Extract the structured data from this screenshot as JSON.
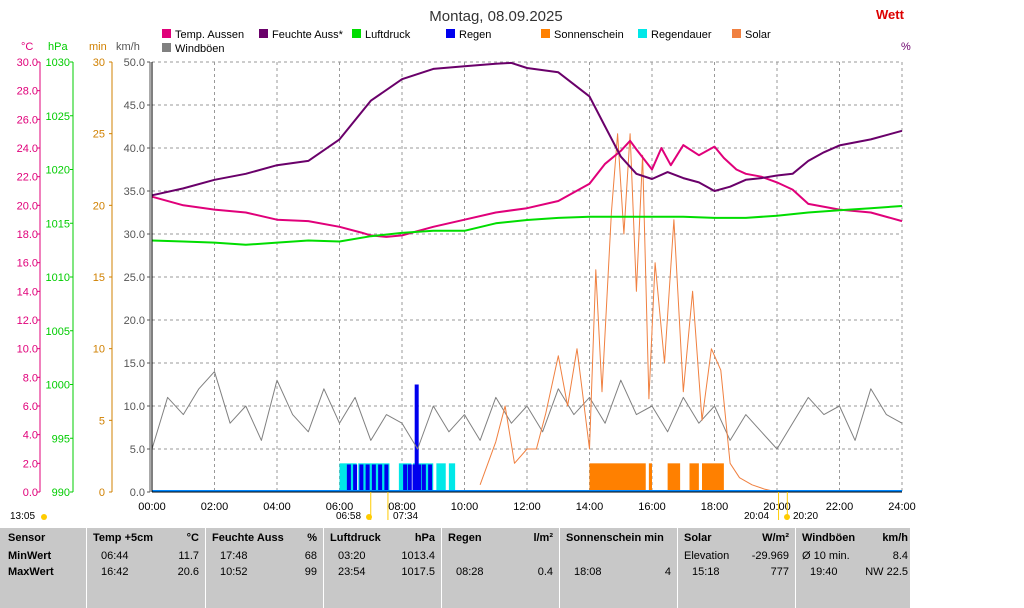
{
  "header": {
    "title": "Montag, 08.09.2025",
    "brand_partial": "Wett",
    "right_unit": "%"
  },
  "axis_units": {
    "temp": "°C",
    "pressure": "hPa",
    "minutes": "min",
    "wind": "km/h"
  },
  "legend": [
    {
      "label": "Temp. Aussen",
      "color": "#e0007a"
    },
    {
      "label": "Feuchte Auss*",
      "color": "#6a006a"
    },
    {
      "label": "Luftdruck",
      "color": "#00dd00"
    },
    {
      "label": "Regen",
      "color": "#0000ee"
    },
    {
      "label": "Sonnenschein",
      "color": "#ff8000"
    },
    {
      "label": "Regendauer",
      "color": "#00e8e8"
    },
    {
      "label": "Solar",
      "color": "#f08040"
    },
    {
      "label": "Windböen",
      "color": "#808080"
    }
  ],
  "sun_labels": {
    "left": "13:05",
    "sunrise": "06:58",
    "sunrise2": "07:34",
    "sunset": "20:04",
    "sunset2": "20:20"
  },
  "chart_data": {
    "type": "line",
    "title": "Montag, 08.09.2025",
    "x_ticks": [
      "00:00",
      "02:00",
      "04:00",
      "06:00",
      "08:00",
      "10:00",
      "12:00",
      "14:00",
      "16:00",
      "18:00",
      "20:00",
      "22:00",
      "24:00"
    ],
    "xlim": [
      0,
      24
    ],
    "axes": {
      "temp": {
        "unit": "°C",
        "range": [
          0,
          30
        ],
        "ticks": [
          "0.0",
          "2.0",
          "4.0",
          "6.0",
          "8.0",
          "10.0",
          "12.0",
          "14.0",
          "16.0",
          "18.0",
          "20.0",
          "22.0",
          "24.0",
          "26.0",
          "28.0",
          "30.0"
        ],
        "color": "#e0007a"
      },
      "pressure": {
        "unit": "hPa",
        "range": [
          990,
          1030
        ],
        "ticks": [
          "990",
          "995",
          "1000",
          "1005",
          "1010",
          "1015",
          "1020",
          "1025",
          "1030"
        ],
        "color": "#00cc00"
      },
      "minutes": {
        "unit": "min",
        "range": [
          0,
          30
        ],
        "ticks": [
          "0",
          "5",
          "10",
          "15",
          "20",
          "25",
          "30"
        ],
        "color": "#d08000"
      },
      "wind": {
        "unit": "km/h",
        "range": [
          0,
          50
        ],
        "ticks": [
          "0.0",
          "5.0",
          "10.0",
          "15.0",
          "20.0",
          "25.0",
          "30.0",
          "35.0",
          "40.0",
          "45.0",
          "50.0"
        ],
        "color": "#555555"
      }
    },
    "series": [
      {
        "name": "Temp. Aussen",
        "axis": "temp",
        "color": "#e0007a",
        "x": [
          0,
          1,
          2,
          3,
          4,
          5,
          6,
          6.7,
          7,
          7.5,
          8,
          9,
          10,
          11,
          12,
          13,
          14,
          14.5,
          15,
          15.3,
          15.5,
          16,
          16.3,
          16.6,
          17,
          17.5,
          18,
          18.3,
          18.7,
          19,
          19.5,
          20,
          20.5,
          21,
          22,
          23,
          24
        ],
        "y": [
          20.6,
          20.0,
          19.7,
          19.5,
          19.0,
          18.9,
          18.5,
          18.1,
          17.9,
          17.8,
          17.9,
          18.5,
          19.0,
          19.5,
          19.8,
          20.3,
          21.5,
          22.9,
          23.8,
          24.5,
          23.9,
          22.5,
          24.0,
          22.8,
          24.2,
          23.5,
          24.1,
          23.3,
          22.5,
          22.2,
          22.0,
          21.6,
          21.1,
          20.1,
          19.7,
          19.5,
          18.9
        ]
      },
      {
        "name": "Feuchte Auss*",
        "axis": "wind",
        "color": "#6a006a",
        "x": [
          0,
          1,
          2,
          3,
          4,
          5,
          6,
          7,
          8,
          9,
          10,
          11,
          11.5,
          12,
          13,
          14,
          14.5,
          15,
          15.5,
          16,
          16.5,
          17,
          17.5,
          18,
          18.5,
          19,
          19.5,
          20,
          20.5,
          21,
          21.5,
          22,
          23,
          24
        ],
        "y": [
          34.5,
          35.3,
          36.3,
          37.0,
          38.0,
          38.5,
          41.0,
          45.5,
          48.0,
          49.2,
          49.5,
          49.8,
          49.9,
          49.3,
          48.8,
          46.0,
          42.5,
          39.0,
          37.0,
          36.4,
          37.2,
          36.5,
          36.0,
          35.0,
          35.5,
          36.3,
          36.5,
          36.8,
          37.0,
          38.5,
          39.5,
          40.3,
          41.0,
          42.0
        ]
      },
      {
        "name": "Luftdruck",
        "axis": "pressure",
        "color": "#00dd00",
        "x": [
          0,
          1,
          2,
          3,
          4,
          5,
          6,
          7,
          8,
          9,
          10,
          11,
          12,
          13,
          14,
          15,
          16,
          17,
          18,
          19,
          20,
          21,
          22,
          23,
          24
        ],
        "y": [
          1013.4,
          1013.3,
          1013.2,
          1013.0,
          1013.2,
          1013.4,
          1013.3,
          1013.8,
          1014.1,
          1014.3,
          1014.3,
          1015.0,
          1015.3,
          1015.5,
          1015.6,
          1015.6,
          1015.6,
          1015.6,
          1015.5,
          1015.5,
          1015.7,
          1016.0,
          1016.2,
          1016.4,
          1016.6
        ]
      }
    ],
    "regen": {
      "name": "Regen",
      "axis": "wind",
      "color": "#0000ee",
      "x": [
        6.3,
        6.5,
        6.7,
        6.9,
        7.1,
        7.3,
        7.5,
        8.1,
        8.25,
        8.4,
        8.47,
        8.55,
        8.7,
        8.9
      ],
      "y": [
        3.2,
        3.2,
        3.2,
        3.2,
        3.2,
        3.2,
        3.2,
        3.2,
        3.2,
        3.2,
        12.5,
        3.2,
        3.2,
        3.2
      ]
    },
    "regendauer": {
      "name": "Regendauer",
      "axis": "minutes",
      "color": "#00e8e8",
      "intervals": [
        [
          6.0,
          6.55
        ],
        [
          6.6,
          7.6
        ],
        [
          7.9,
          8.3
        ],
        [
          8.35,
          9.0
        ],
        [
          9.1,
          9.4
        ],
        [
          9.5,
          9.7
        ]
      ],
      "level": 2
    },
    "sonnenschein": {
      "name": "Sonnenschein",
      "axis": "minutes",
      "color": "#ff8000",
      "intervals": [
        [
          14.0,
          15.8
        ],
        [
          15.9,
          16.0
        ],
        [
          16.5,
          16.9
        ],
        [
          17.2,
          17.5
        ],
        [
          17.6,
          18.3
        ]
      ],
      "level": 2
    },
    "solar": {
      "name": "Solar",
      "axis": "minutes",
      "color": "#f08040",
      "x": [
        10.5,
        11,
        11.3,
        11.6,
        12,
        12.3,
        12.6,
        13,
        13.3,
        13.6,
        14,
        14.2,
        14.4,
        14.7,
        14.9,
        15.1,
        15.3,
        15.5,
        15.7,
        15.9,
        16.1,
        16.4,
        16.7,
        17,
        17.3,
        17.6,
        17.9,
        18.2,
        18.5,
        18.8,
        19.2,
        19.6,
        20,
        20.3
      ],
      "y": [
        0.5,
        3.5,
        6.0,
        2.0,
        3.0,
        3.0,
        5.5,
        9.5,
        6.0,
        10.0,
        3.0,
        15.5,
        7.0,
        19.5,
        25.0,
        18.0,
        25.0,
        14.0,
        23.5,
        6.5,
        16.0,
        9.0,
        19.0,
        7.0,
        14.0,
        5.0,
        10.0,
        8.5,
        2.0,
        1.0,
        0.5,
        0.2,
        0,
        0
      ]
    },
    "windboeen": {
      "name": "Windböen",
      "axis": "wind",
      "color": "#808080",
      "x": [
        0,
        0.5,
        1,
        1.5,
        2,
        2.5,
        3,
        3.5,
        4,
        4.5,
        5,
        5.5,
        6,
        6.5,
        7,
        7.5,
        8,
        8.5,
        9,
        9.5,
        10,
        10.5,
        11,
        11.5,
        12,
        12.5,
        13,
        13.5,
        14,
        14.5,
        15,
        15.5,
        16,
        16.5,
        17,
        17.5,
        18,
        18.5,
        19,
        19.5,
        20,
        20.5,
        21,
        21.5,
        22,
        22.5,
        23,
        23.5,
        24
      ],
      "y": [
        5,
        11,
        9,
        12,
        14,
        8,
        10,
        6,
        13,
        9,
        7,
        12,
        8,
        11,
        6,
        9,
        8,
        5,
        10,
        7,
        9,
        6,
        11,
        8,
        10,
        7,
        12,
        9,
        11,
        8,
        13,
        9,
        10,
        7,
        11,
        8,
        10,
        6,
        9,
        7,
        5,
        8,
        11,
        9,
        10,
        6,
        12,
        9,
        8
      ]
    }
  },
  "table": {
    "row_labels": [
      "Sensor",
      "MinWert",
      "MaxWert"
    ],
    "columns": [
      {
        "h1": "Temp +5cm",
        "h2": "°C",
        "rows": [
          [
            "06:44",
            "11.7"
          ],
          [
            "16:42",
            "20.6"
          ]
        ]
      },
      {
        "h1": "Feuchte Auss",
        "h2": "%",
        "rows": [
          [
            "17:48",
            "68"
          ],
          [
            "10:52",
            "99"
          ]
        ]
      },
      {
        "h1": "Luftdruck",
        "h2": "hPa",
        "rows": [
          [
            "03:20",
            "1013.4"
          ],
          [
            "23:54",
            "1017.5"
          ]
        ]
      },
      {
        "h1": "Regen",
        "h2": "l/m²",
        "rows": [
          [
            "",
            ""
          ],
          [
            "08:28",
            "0.4"
          ]
        ]
      },
      {
        "h1": "Sonnenschein min",
        "h2": "",
        "rows": [
          [
            "",
            ""
          ],
          [
            "18:08",
            "4"
          ]
        ]
      },
      {
        "h1": "Solar",
        "h2": "W/m²",
        "rows": [
          [
            "Elevation",
            "-29.969"
          ],
          [
            "15:18",
            "777"
          ]
        ]
      },
      {
        "h1": "Windböen",
        "h2": "km/h",
        "rows": [
          [
            "Ø 10 min.",
            "8.4"
          ],
          [
            "19:40",
            "NW 22.5"
          ]
        ]
      }
    ]
  }
}
